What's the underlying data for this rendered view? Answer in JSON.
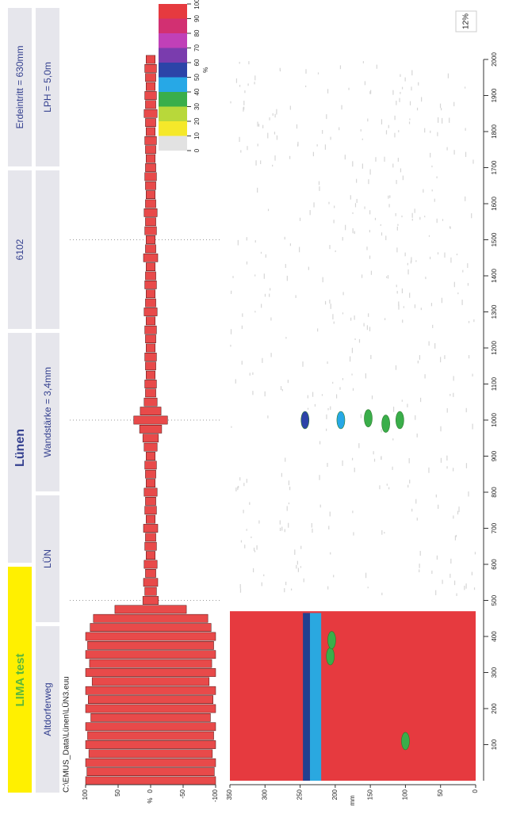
{
  "header": {
    "project": "LIMA test",
    "city": "Lünen",
    "number": "6102",
    "ground_entry": "Erdeintritt = 630mm",
    "street": "Altdorferweg",
    "code": "LÜN",
    "wall": "Wandstärke = 3,4mm",
    "lph": "LPH = 5,0m"
  },
  "file_path": "C:\\EMUS_Data\\Lünen\\LÜN3.euu",
  "scale_note": "12%",
  "chart_data": [
    {
      "type": "envelope",
      "ylabel": "%",
      "color": "#e84a4a",
      "xlim": [
        0,
        2000
      ],
      "ylim": [
        -100,
        100
      ],
      "yticks": [
        100,
        50,
        0,
        -50,
        -100
      ],
      "xgrid": [
        500,
        1000,
        1500
      ],
      "x": [
        0,
        25,
        50,
        75,
        100,
        125,
        150,
        175,
        200,
        225,
        250,
        275,
        300,
        325,
        350,
        375,
        400,
        425,
        450,
        475,
        500,
        525,
        550,
        575,
        600,
        625,
        650,
        675,
        700,
        725,
        750,
        775,
        800,
        825,
        850,
        875,
        900,
        925,
        950,
        975,
        1000,
        1025,
        1050,
        1075,
        1100,
        1125,
        1150,
        1175,
        1200,
        1225,
        1250,
        1275,
        1300,
        1325,
        1350,
        1375,
        1400,
        1425,
        1450,
        1475,
        1500,
        1525,
        1550,
        1575,
        1600,
        1625,
        1650,
        1675,
        1700,
        1725,
        1750,
        1775,
        1800,
        1825,
        1850,
        1875,
        1900,
        1925,
        1950,
        1975,
        2000
      ],
      "values": [
        100,
        98,
        100,
        95,
        100,
        97,
        100,
        92,
        100,
        96,
        100,
        90,
        100,
        94,
        100,
        97,
        100,
        93,
        88,
        55,
        12,
        9,
        11,
        8,
        10,
        7,
        9,
        8,
        11,
        7,
        9,
        8,
        10,
        7,
        8,
        9,
        7,
        10,
        12,
        17,
        26,
        16,
        10,
        8,
        9,
        7,
        8,
        9,
        7,
        8,
        9,
        7,
        10,
        8,
        7,
        9,
        8,
        7,
        11,
        8,
        7,
        9,
        8,
        10,
        8,
        7,
        8,
        9,
        8,
        7,
        8,
        9,
        7,
        8,
        10,
        8,
        9,
        7,
        8,
        9,
        7
      ]
    },
    {
      "type": "heatmap",
      "ylabel": "mm",
      "xlim": [
        0,
        2000
      ],
      "ylim": [
        0,
        350
      ],
      "yticks": [
        350,
        300,
        250,
        200,
        150,
        100,
        50,
        0
      ],
      "xticks": [
        100,
        200,
        300,
        400,
        500,
        600,
        700,
        800,
        900,
        1000,
        1100,
        1200,
        1300,
        1400,
        1500,
        1600,
        1700,
        1800,
        1900,
        2000
      ],
      "regions": [
        {
          "x": [
            0,
            470
          ],
          "y": [
            0,
            350
          ],
          "color": "#e63a3f"
        },
        {
          "x": [
            0,
            465
          ],
          "y": [
            220,
            236
          ],
          "color": "#2aa8e0"
        },
        {
          "x": [
            0,
            465
          ],
          "y": [
            236,
            246
          ],
          "color": "#23408f"
        }
      ],
      "spots": [
        {
          "x": 1000,
          "y": 243,
          "value": 55
        },
        {
          "x": 1000,
          "y": 192,
          "value": 45
        },
        {
          "x": 1005,
          "y": 153,
          "value": 35
        },
        {
          "x": 990,
          "y": 128,
          "value": 30
        },
        {
          "x": 1000,
          "y": 108,
          "value": 35
        },
        {
          "x": 345,
          "y": 207,
          "value": 35
        },
        {
          "x": 390,
          "y": 205,
          "value": 30
        },
        {
          "x": 110,
          "y": 100,
          "value": 35
        }
      ],
      "legend": {
        "label": "%",
        "levels": [
          100,
          90,
          80,
          70,
          60,
          50,
          40,
          30,
          20,
          10,
          0
        ],
        "colors": [
          "#e63a3f",
          "#d23072",
          "#c040b8",
          "#7a3cae",
          "#2c44a8",
          "#27a8e6",
          "#3aae4a",
          "#b8d83a",
          "#f5e82a",
          "#e2e2e2"
        ]
      }
    }
  ]
}
